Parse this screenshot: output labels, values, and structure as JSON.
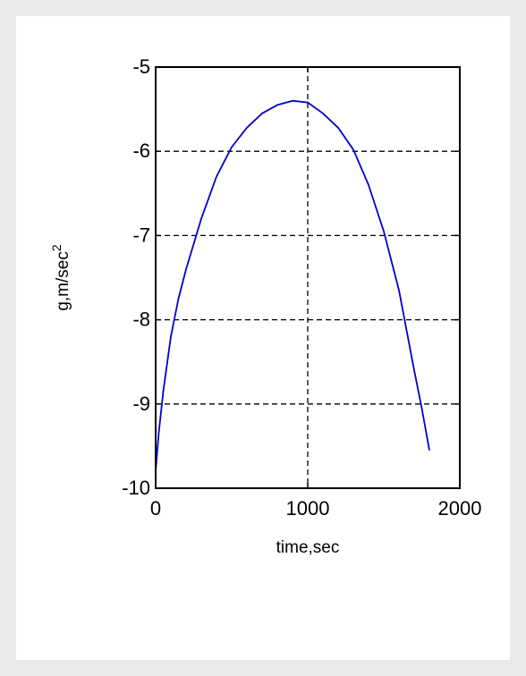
{
  "chart_data": {
    "type": "line",
    "title": "",
    "xlabel": "time,sec",
    "ylabel_main": "g,m/sec",
    "ylabel_sup": "2",
    "xlim": [
      0,
      2000
    ],
    "ylim": [
      -10,
      -5
    ],
    "xticks": [
      0,
      1000,
      2000
    ],
    "xtick_labels": [
      "0",
      "1000",
      "2000"
    ],
    "yticks": [
      -10,
      -9,
      -8,
      -7,
      -6,
      -5
    ],
    "ytick_labels": [
      "-10",
      "-9",
      "-8",
      "-7",
      "-6",
      "-5"
    ],
    "grid": "dashed, x at 1000, y at -9 to -6",
    "legend": "none",
    "line_color": "#0000cc",
    "series": [
      {
        "x": [
          0,
          20,
          50,
          100,
          150,
          200,
          300,
          400,
          500,
          600,
          700,
          800,
          900,
          1000,
          1100,
          1200,
          1300,
          1400,
          1500,
          1600,
          1700,
          1750,
          1800
        ],
        "values": [
          -9.8,
          -9.35,
          -8.85,
          -8.2,
          -7.75,
          -7.4,
          -6.8,
          -6.3,
          -5.95,
          -5.72,
          -5.55,
          -5.45,
          -5.4,
          -5.42,
          -5.55,
          -5.72,
          -5.98,
          -6.4,
          -6.95,
          -7.65,
          -8.6,
          -9.05,
          -9.55
        ]
      }
    ]
  }
}
